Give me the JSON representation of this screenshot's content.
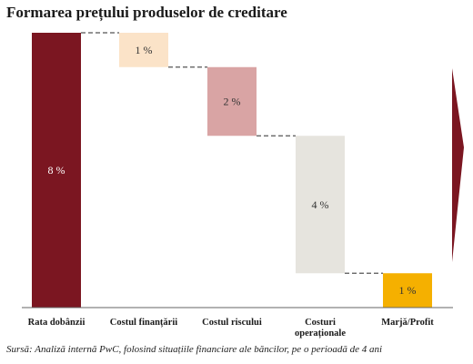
{
  "title": "Formarea prețului produselor de creditare",
  "source": "Sursă: Analiză internă PwC, folosind situațiile financiare ale băncilor, pe o perioadă de 4 ani",
  "chart_data": {
    "type": "bar",
    "subtype": "waterfall",
    "categories": [
      "Rata dobânzii",
      "Costul finanțării",
      "Costul riscului",
      "Costuri operaționale",
      "Marjă/Profit"
    ],
    "category_lines": [
      [
        "Rata dobânzii"
      ],
      [
        "Costul finanțării"
      ],
      [
        "Costul riscului"
      ],
      [
        "Costuri",
        "operaționale"
      ],
      [
        "Marjă/Profit"
      ]
    ],
    "values": [
      8,
      1,
      2,
      4,
      1
    ],
    "labels": [
      "8 %",
      "1 %",
      "2 %",
      "4 %",
      "1 %"
    ],
    "colors": [
      "#7b1621",
      "#fbe3c8",
      "#d9a4a4",
      "#e6e4de",
      "#f5b000"
    ],
    "label_colors": [
      "#ffffff",
      "#333333",
      "#333333",
      "#333333",
      "#333333"
    ],
    "connector_color": "#555555",
    "arrow_color": "#7b1621",
    "ylim": [
      0,
      8
    ]
  }
}
